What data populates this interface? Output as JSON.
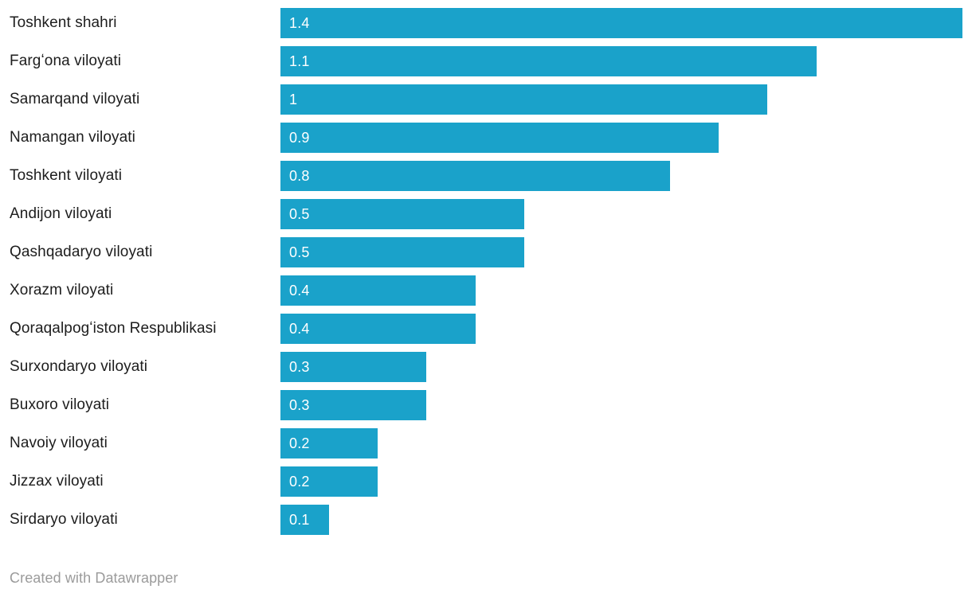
{
  "chart_data": {
    "type": "bar",
    "orientation": "horizontal",
    "title": "",
    "xlabel": "",
    "ylabel": "",
    "xlim": [
      0,
      1.4
    ],
    "grid": false,
    "legend": false,
    "bar_color": "#1AA2CA",
    "category_label_color": "#1d1d1d",
    "value_label_color": "#ffffff",
    "categories": [
      "Toshkent shahri",
      "Fargʻona viloyati",
      "Samarqand viloyati",
      "Namangan viloyati",
      "Toshkent viloyati",
      "Andijon viloyati",
      "Qashqadaryo viloyati",
      "Xorazm viloyati",
      "Qoraqalpogʻiston Respublikasi",
      "Surxondaryo viloyati",
      "Buxoro viloyati",
      "Navoiy viloyati",
      "Jizzax viloyati",
      "Sirdaryo viloyati"
    ],
    "values": [
      1.4,
      1.1,
      1,
      0.9,
      0.8,
      0.5,
      0.5,
      0.4,
      0.4,
      0.3,
      0.3,
      0.2,
      0.2,
      0.1
    ],
    "value_labels": [
      "1.4",
      "1.1",
      "1",
      "0.9",
      "0.8",
      "0.5",
      "0.5",
      "0.4",
      "0.4",
      "0.3",
      "0.3",
      "0.2",
      "0.2",
      "0.1"
    ]
  },
  "footer": {
    "text": "Created with Datawrapper",
    "color": "#9b9b9b"
  }
}
